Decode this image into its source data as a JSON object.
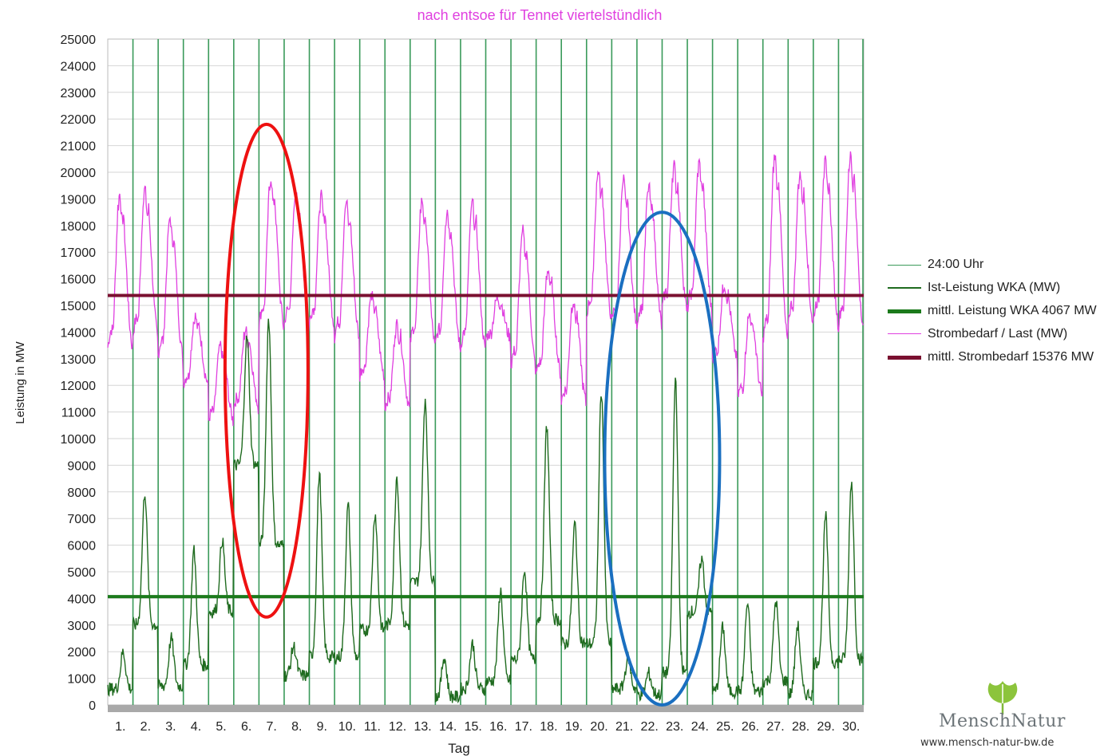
{
  "chart_data": {
    "type": "line",
    "title": "nach entsoe für Tennet viertelstündlich",
    "xlabel": "Tag",
    "ylabel": "Leistung in MW",
    "ylim": [
      0,
      25000
    ],
    "ytick_step": 1000,
    "x_days": [
      "1.",
      "2.",
      "3.",
      "4.",
      "5.",
      "6.",
      "7.",
      "8.",
      "9.",
      "10.",
      "11.",
      "12.",
      "13.",
      "14.",
      "15.",
      "16.",
      "17.",
      "18.",
      "19.",
      "20.",
      "21.",
      "22.",
      "23.",
      "24.",
      "25.",
      "26.",
      "27.",
      "28.",
      "29.",
      "30."
    ],
    "grid": true,
    "legend_position": "right",
    "series": [
      {
        "name": "24:00 Uhr",
        "color": "#3a9a5a",
        "kind": "day-separator"
      },
      {
        "name": "Ist-Leistung WKA (MW)",
        "color": "#1f6b1f",
        "kind": "line",
        "daily_peaks": [
          2000,
          8000,
          2500,
          5800,
          6200,
          13800,
          14500,
          2200,
          8700,
          7500,
          7200,
          8600,
          11500,
          1800,
          2300,
          4300,
          5100,
          10500,
          6800,
          11800,
          1800,
          1200,
          12300,
          5500,
          2900,
          3800,
          3900,
          3000,
          7100,
          8400
        ],
        "daily_lows": [
          600,
          3000,
          700,
          1500,
          3500,
          9000,
          6000,
          1100,
          1800,
          1800,
          2800,
          3000,
          4600,
          300,
          600,
          900,
          1700,
          3200,
          2300,
          2300,
          600,
          400,
          1200,
          3500,
          500,
          500,
          900,
          400,
          1600,
          1700
        ]
      },
      {
        "name": "mittl. Leistung WKA 4067 MW",
        "color": "#1b7a1b",
        "kind": "constant",
        "value": 4067
      },
      {
        "name": "Strombedarf / Last (MW)",
        "color": "#e040e0",
        "kind": "line",
        "daily_peaks": [
          19200,
          19400,
          18300,
          14600,
          13500,
          14100,
          19800,
          19200,
          19100,
          18900,
          15400,
          14300,
          19000,
          18600,
          18900,
          15300,
          17800,
          16400,
          15200,
          20100,
          19700,
          19500,
          20300,
          20400,
          15800,
          14700,
          20700,
          20000,
          20400,
          20700
        ],
        "daily_lows": [
          12400,
          12900,
          12200,
          11600,
          10200,
          10700,
          13300,
          13400,
          13500,
          12900,
          11800,
          10600,
          12600,
          12600,
          12400,
          13500,
          11800,
          11700,
          10700,
          13600,
          13400,
          13400,
          13900,
          13800,
          12500,
          11000,
          12400,
          13400,
          13400,
          13100
        ]
      },
      {
        "name": "mittl. Strombedarf 15376 MW",
        "color": "#7a1030",
        "kind": "constant",
        "value": 15376
      }
    ],
    "annotations": [
      {
        "shape": "ellipse",
        "color": "#ee1111",
        "x_day": 6.3,
        "y_min": 3300,
        "y_max": 21800
      },
      {
        "shape": "ellipse",
        "color": "#1a6fc0",
        "x_day": 22.0,
        "y_min": 0,
        "y_max": 18500
      }
    ]
  },
  "legend": [
    {
      "label": "24:00 Uhr",
      "color": "#3a9a5a",
      "weight": 1
    },
    {
      "label": "Ist-Leistung WKA (MW)",
      "color": "#1f6b1f",
      "weight": 2
    },
    {
      "label": "mittl. Leistung WKA 4067 MW",
      "color": "#1b7a1b",
      "weight": 5
    },
    {
      "label": "Strombedarf / Last (MW)",
      "color": "#e040e0",
      "weight": 1.5
    },
    {
      "label": "mittl. Strombedarf 15376 MW",
      "color": "#7a1030",
      "weight": 5
    }
  ],
  "logo": {
    "name": "MenschNatur",
    "url": "www.mensch-natur-bw.de"
  }
}
